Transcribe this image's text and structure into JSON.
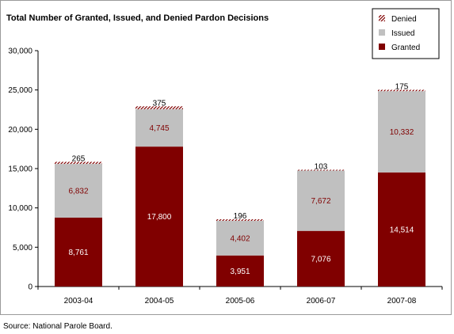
{
  "chart_data": {
    "type": "bar",
    "stacked": true,
    "title": "Total Number of Granted, Issued, and Denied Pardon Decisions",
    "xlabel": "",
    "ylabel": "",
    "categories": [
      "2003-04",
      "2004-05",
      "2005-06",
      "2006-07",
      "2007-08"
    ],
    "ylim": [
      0,
      30000
    ],
    "yticks": [
      0,
      5000,
      10000,
      15000,
      20000,
      25000,
      30000
    ],
    "ytick_labels": [
      "0",
      "5,000",
      "10,000",
      "15,000",
      "20,000",
      "25,000",
      "30,000"
    ],
    "series": [
      {
        "name": "Granted",
        "values": [
          8761,
          17800,
          3951,
          7076,
          14514
        ],
        "labels": [
          "8,761",
          "17,800",
          "3,951",
          "7,076",
          "14,514"
        ],
        "color": "#800000",
        "label_color": "#ffffff"
      },
      {
        "name": "Issued",
        "values": [
          6832,
          4745,
          4402,
          7672,
          10332
        ],
        "labels": [
          "6,832",
          "4,745",
          "4,402",
          "7,672",
          "10,332"
        ],
        "color": "#c0c0c0",
        "label_color": "#800000"
      },
      {
        "name": "Denied",
        "values": [
          265,
          375,
          196,
          103,
          175
        ],
        "labels": [
          "265",
          "375",
          "196",
          "103",
          "175"
        ],
        "color": "#800000",
        "pattern": "diagonal-hatch",
        "label_color": "#000000"
      }
    ],
    "legend": {
      "position": "top-right",
      "order": [
        "Denied",
        "Issued",
        "Granted"
      ]
    },
    "grid": false,
    "source": "Source:  National Parole Board."
  }
}
